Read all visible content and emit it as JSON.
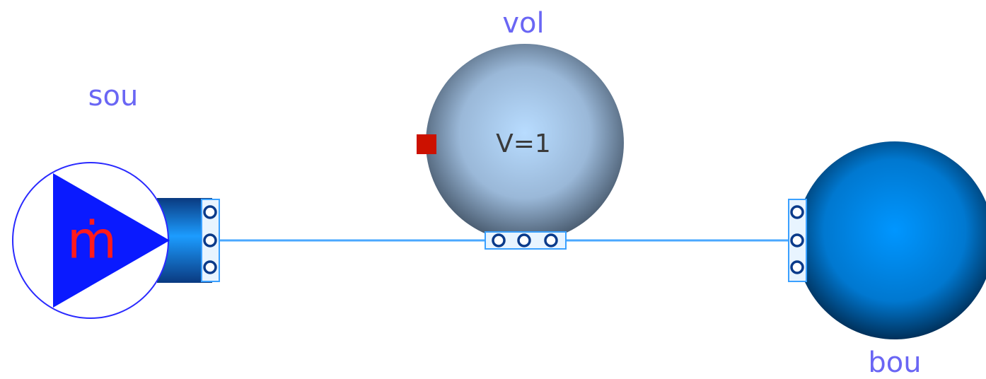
{
  "nodes": [
    {
      "id": "sou",
      "label": "sou",
      "icon_text": "ṁ"
    },
    {
      "id": "vol",
      "label": "vol",
      "icon_text": "V=1"
    },
    {
      "id": "bou",
      "label": "bou"
    }
  ]
}
